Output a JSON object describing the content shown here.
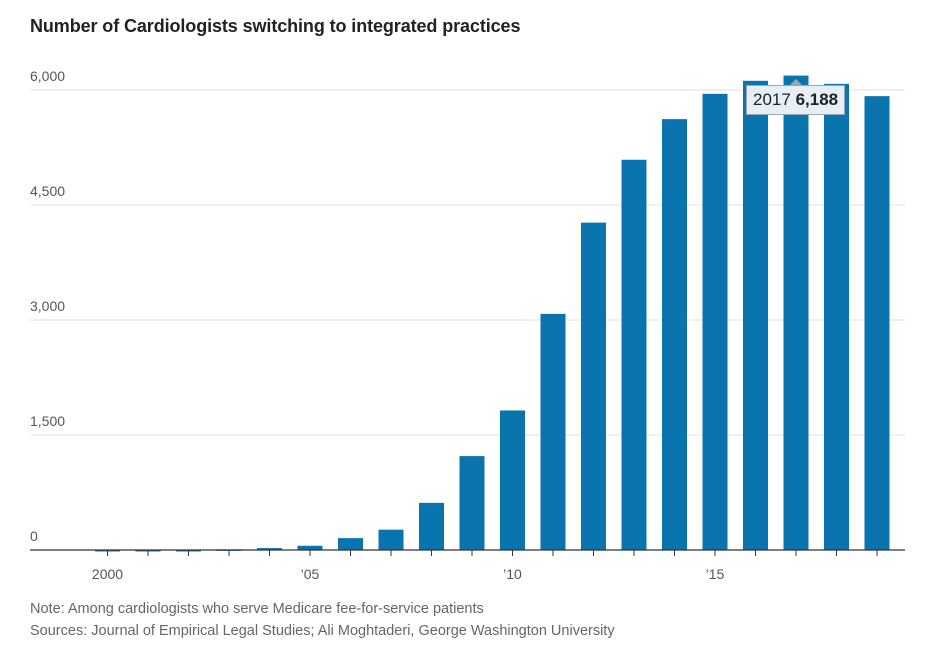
{
  "title": "Number of Cardiologists switching to integrated practices",
  "colors": {
    "bar": "#0a74ae",
    "grid": "#e2e2e2",
    "axis": "#333333"
  },
  "tooltip": {
    "year": "2017",
    "value": "6,188"
  },
  "notes": {
    "note": "Note: Among cardiologists who serve Medicare fee-for-service patients",
    "sources": "Sources: Journal of Empirical Legal Studies; Ali Moghtaderi, George Washington University"
  },
  "chart_data": {
    "type": "bar",
    "title": "Number of Cardiologists switching to integrated practices",
    "xlabel": "",
    "ylabel": "",
    "ylim": [
      0,
      6000
    ],
    "yticks": [
      0,
      1500,
      3000,
      4500,
      6000
    ],
    "ytick_labels": [
      "0",
      "1,500",
      "3,000",
      "4,500",
      "6,000"
    ],
    "xtick_labels": [
      {
        "year": 2000,
        "label": "2000"
      },
      {
        "year": 2005,
        "label": "’05"
      },
      {
        "year": 2010,
        "label": "’10"
      },
      {
        "year": 2015,
        "label": "’15"
      }
    ],
    "categories": [
      2000,
      2001,
      2002,
      2003,
      2004,
      2005,
      2006,
      2007,
      2008,
      2009,
      2010,
      2011,
      2012,
      2013,
      2014,
      2015,
      2016,
      2017,
      2018,
      2019
    ],
    "values": [
      -15,
      -12,
      -15,
      8,
      25,
      55,
      155,
      265,
      615,
      1225,
      1820,
      3080,
      4270,
      5090,
      5620,
      5950,
      6120,
      6188,
      6080,
      5920
    ],
    "highlight": {
      "year": 2017,
      "value": 6188
    }
  }
}
